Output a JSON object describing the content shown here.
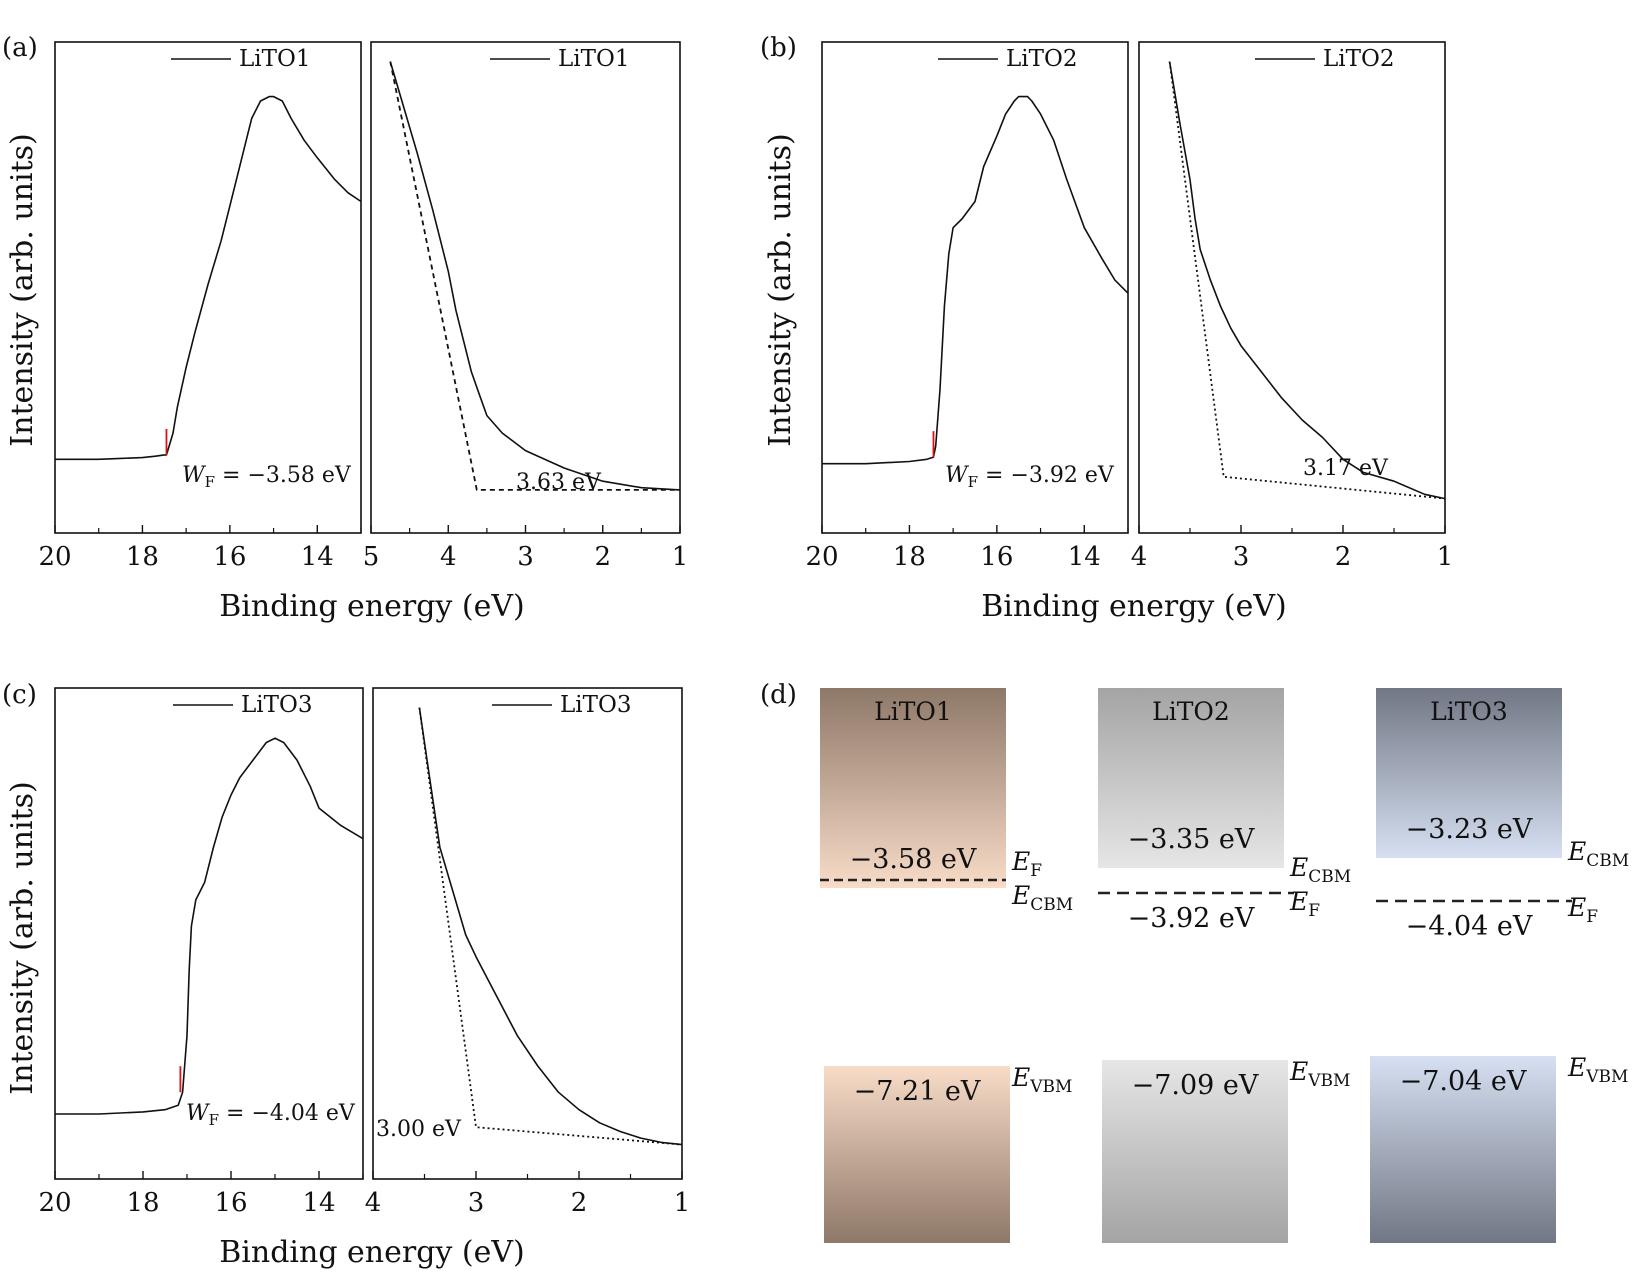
{
  "figure": {
    "panels": [
      {
        "id": "a",
        "label": "(a)"
      },
      {
        "id": "b",
        "label": "(b)"
      },
      {
        "id": "c",
        "label": "(c)"
      },
      {
        "id": "d",
        "label": "(d)"
      }
    ]
  },
  "chart_data": [
    {
      "panel": "a",
      "part": "secondary-electron-cutoff",
      "type": "line",
      "legend": "LiTO1",
      "xlabel": "Binding energy (eV)",
      "ylabel": "Intensity (arb. units)",
      "xlim": [
        20,
        13
      ],
      "xticks": [
        20,
        18,
        16,
        14
      ],
      "ylim": [
        0,
        1
      ],
      "x": [
        20,
        19,
        18.5,
        18,
        17.7,
        17.5,
        17.45,
        17.3,
        17.2,
        17.0,
        16.8,
        16.5,
        16.2,
        16.0,
        15.8,
        15.6,
        15.5,
        15.3,
        15.1,
        15.0,
        14.8,
        14.6,
        14.3,
        14.0,
        13.6,
        13.3,
        13.0
      ],
      "y": [
        0.09,
        0.09,
        0.092,
        0.094,
        0.097,
        0.1,
        0.1,
        0.15,
        0.21,
        0.3,
        0.38,
        0.49,
        0.59,
        0.67,
        0.75,
        0.83,
        0.87,
        0.91,
        0.92,
        0.92,
        0.91,
        0.87,
        0.82,
        0.78,
        0.73,
        0.7,
        0.68
      ],
      "cutoff_marker_x": 17.45,
      "annotation": {
        "symbol": "W",
        "sub": "F",
        "text": " = −3.58 eV"
      }
    },
    {
      "panel": "a",
      "part": "valence-band-edge",
      "type": "line",
      "legend": "LiTO1",
      "xlim": [
        5,
        1
      ],
      "xticks": [
        5,
        4,
        3,
        2,
        1
      ],
      "ylim": [
        0,
        1
      ],
      "x": [
        4.75,
        4.6,
        4.4,
        4.2,
        4.0,
        3.9,
        3.8,
        3.7,
        3.6,
        3.5,
        3.3,
        3.0,
        2.5,
        2.0,
        1.5,
        1.0
      ],
      "y": [
        1.0,
        0.91,
        0.79,
        0.66,
        0.52,
        0.43,
        0.36,
        0.29,
        0.24,
        0.19,
        0.15,
        0.11,
        0.07,
        0.04,
        0.025,
        0.02
      ],
      "fit_x": [
        4.75,
        3.63,
        1.0
      ],
      "fit_y": [
        1.0,
        0.02,
        0.02
      ],
      "gap_label": "3.63 eV"
    },
    {
      "panel": "b",
      "part": "secondary-electron-cutoff",
      "type": "line",
      "legend": "LiTO2",
      "xlabel": "Binding energy (eV)",
      "ylabel": "Intensity (arb. units)",
      "xlim": [
        20,
        13
      ],
      "xticks": [
        20,
        18,
        16,
        14
      ],
      "ylim": [
        0,
        1
      ],
      "x": [
        20,
        19,
        18,
        17.6,
        17.45,
        17.4,
        17.3,
        17.2,
        17.1,
        17.0,
        16.8,
        16.5,
        16.3,
        16.0,
        15.8,
        15.6,
        15.5,
        15.3,
        15.2,
        15.0,
        14.7,
        14.4,
        14.0,
        13.6,
        13.3,
        13.0
      ],
      "y": [
        0.08,
        0.08,
        0.085,
        0.09,
        0.095,
        0.12,
        0.25,
        0.44,
        0.56,
        0.62,
        0.64,
        0.68,
        0.76,
        0.83,
        0.88,
        0.91,
        0.92,
        0.92,
        0.91,
        0.88,
        0.82,
        0.73,
        0.62,
        0.55,
        0.5,
        0.47
      ],
      "cutoff_marker_x": 17.45,
      "annotation": {
        "symbol": "W",
        "sub": "F",
        "text": " = −3.92 eV"
      }
    },
    {
      "panel": "b",
      "part": "valence-band-edge",
      "type": "line",
      "legend": "LiTO2",
      "xlim": [
        4,
        1
      ],
      "xticks": [
        4,
        3,
        2,
        1
      ],
      "ylim": [
        0,
        1
      ],
      "x": [
        3.7,
        3.6,
        3.5,
        3.45,
        3.4,
        3.3,
        3.2,
        3.1,
        3.0,
        2.8,
        2.6,
        2.4,
        2.2,
        2.0,
        1.8,
        1.5,
        1.2,
        1.0
      ],
      "y": [
        1.0,
        0.86,
        0.73,
        0.64,
        0.57,
        0.5,
        0.44,
        0.39,
        0.35,
        0.29,
        0.23,
        0.18,
        0.14,
        0.09,
        0.06,
        0.04,
        0.01,
        0.0
      ],
      "fit_x": [
        3.7,
        3.17,
        1.0
      ],
      "fit_y": [
        1.0,
        0.05,
        0.0
      ],
      "gap_label": "3.17 eV"
    },
    {
      "panel": "c",
      "part": "secondary-electron-cutoff",
      "type": "line",
      "legend": "LiTO3",
      "xlabel": "Binding energy (eV)",
      "ylabel": "Intensity (arb. units)",
      "xlim": [
        20,
        13
      ],
      "xticks": [
        20,
        18,
        16,
        14
      ],
      "ylim": [
        0,
        1
      ],
      "x": [
        20,
        19,
        18,
        17.5,
        17.2,
        17.1,
        17.0,
        16.95,
        16.9,
        16.8,
        16.6,
        16.4,
        16.2,
        16.0,
        15.8,
        15.5,
        15.2,
        15.0,
        14.8,
        14.5,
        14.2,
        14.0,
        13.5,
        13.0
      ],
      "y": [
        0.07,
        0.07,
        0.075,
        0.08,
        0.09,
        0.12,
        0.25,
        0.4,
        0.5,
        0.56,
        0.6,
        0.68,
        0.75,
        0.8,
        0.84,
        0.88,
        0.92,
        0.93,
        0.92,
        0.88,
        0.82,
        0.77,
        0.73,
        0.7
      ],
      "cutoff_marker_x": 17.15,
      "annotation": {
        "symbol": "W",
        "sub": "F",
        "text": " = −4.04 eV"
      }
    },
    {
      "panel": "c",
      "part": "valence-band-edge",
      "type": "line",
      "legend": "LiTO3",
      "xlim": [
        4,
        1
      ],
      "xticks": [
        4,
        3,
        2,
        1
      ],
      "ylim": [
        0,
        1
      ],
      "x": [
        3.55,
        3.45,
        3.35,
        3.3,
        3.2,
        3.1,
        3.0,
        2.8,
        2.6,
        2.4,
        2.2,
        2.0,
        1.8,
        1.6,
        1.4,
        1.2,
        1.0
      ],
      "y": [
        1.0,
        0.84,
        0.68,
        0.64,
        0.56,
        0.48,
        0.43,
        0.34,
        0.25,
        0.18,
        0.12,
        0.08,
        0.05,
        0.03,
        0.015,
        0.005,
        0.0
      ],
      "fit_x": [
        3.55,
        3.0,
        1.0
      ],
      "fit_y": [
        1.0,
        0.04,
        0.0
      ],
      "gap_label": "3.00 eV"
    },
    {
      "panel": "d",
      "type": "table",
      "kind": "energy-level-diagram",
      "materials": [
        {
          "name": "LiTO1",
          "color_top": "#8e7868",
          "color_bottom": "#f8dcc8",
          "cbm_value": "−3.58 eV",
          "cbm": -3.58,
          "fermi_value": "−3.58 eV",
          "fermi": -3.58,
          "vbm_value": "−7.21 eV",
          "vbm": -7.21,
          "labels": {
            "ef": {
              "s": "E",
              "sub": "F"
            },
            "ecbm": {
              "s": "E",
              "sub": "CBM"
            },
            "evbm": {
              "s": "E",
              "sub": "VBM"
            }
          }
        },
        {
          "name": "LiTO2",
          "color_top": "#a4a4a4",
          "color_bottom": "#e6e6e6",
          "cbm_value": "−3.35 eV",
          "cbm": -3.35,
          "fermi_value": "−3.92 eV",
          "fermi": -3.92,
          "vbm_value": "−7.09 eV",
          "vbm": -7.09,
          "labels": {
            "ef": {
              "s": "E",
              "sub": "F"
            },
            "ecbm": {
              "s": "E",
              "sub": "CBM"
            },
            "evbm": {
              "s": "E",
              "sub": "VBM"
            }
          }
        },
        {
          "name": "LiTO3",
          "color_top": "#717784",
          "color_bottom": "#d6e0f2",
          "cbm_value": "−3.23 eV",
          "cbm": -3.23,
          "fermi_value": "−4.04 eV",
          "fermi": -4.04,
          "vbm_value": "−7.04 eV",
          "vbm": -7.04,
          "labels": {
            "ef": {
              "s": "E",
              "sub": "F"
            },
            "ecbm": {
              "s": "E",
              "sub": "CBM"
            },
            "evbm": {
              "s": "E",
              "sub": "VBM"
            }
          }
        }
      ]
    }
  ]
}
